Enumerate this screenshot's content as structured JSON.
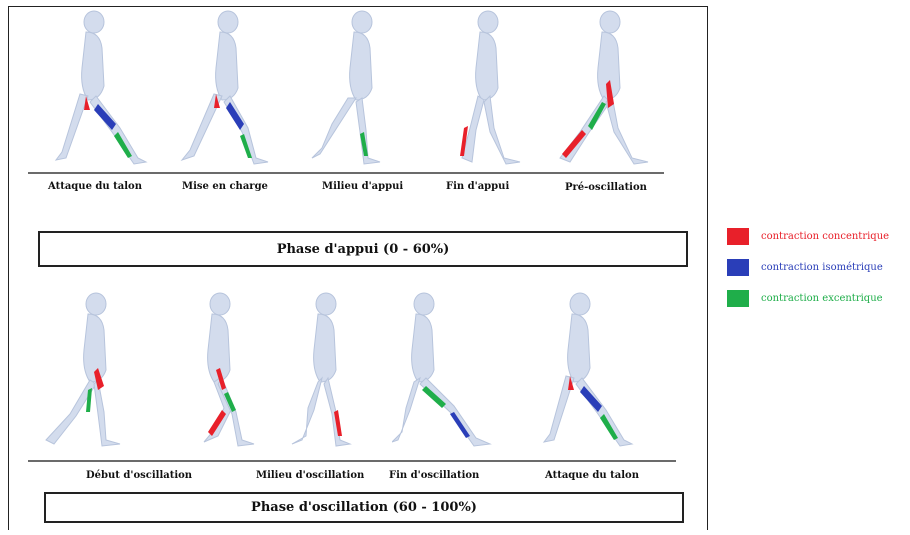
{
  "stance_phase": {
    "label": "Phase d'appui (0 - 60%)",
    "stages": [
      {
        "label": "Attaque du talon"
      },
      {
        "label": "Mise en charge"
      },
      {
        "label": "Milieu d'appui"
      },
      {
        "label": "Fin d'appui"
      },
      {
        "label": "Pré-oscillation"
      }
    ]
  },
  "swing_phase": {
    "label": "Phase d'oscillation (60 - 100%)",
    "stages": [
      {
        "label": "Début d'oscillation"
      },
      {
        "label": "Milieu d'oscillation"
      },
      {
        "label": "Fin d'oscillation"
      },
      {
        "label": "Attaque du talon"
      }
    ]
  },
  "legend": [
    {
      "label": "contraction concentrique",
      "color": "#e8202a"
    },
    {
      "label": "contraction isométrique",
      "color": "#2a3eb8"
    },
    {
      "label": "contraction excentrique",
      "color": "#1fae4a"
    }
  ]
}
